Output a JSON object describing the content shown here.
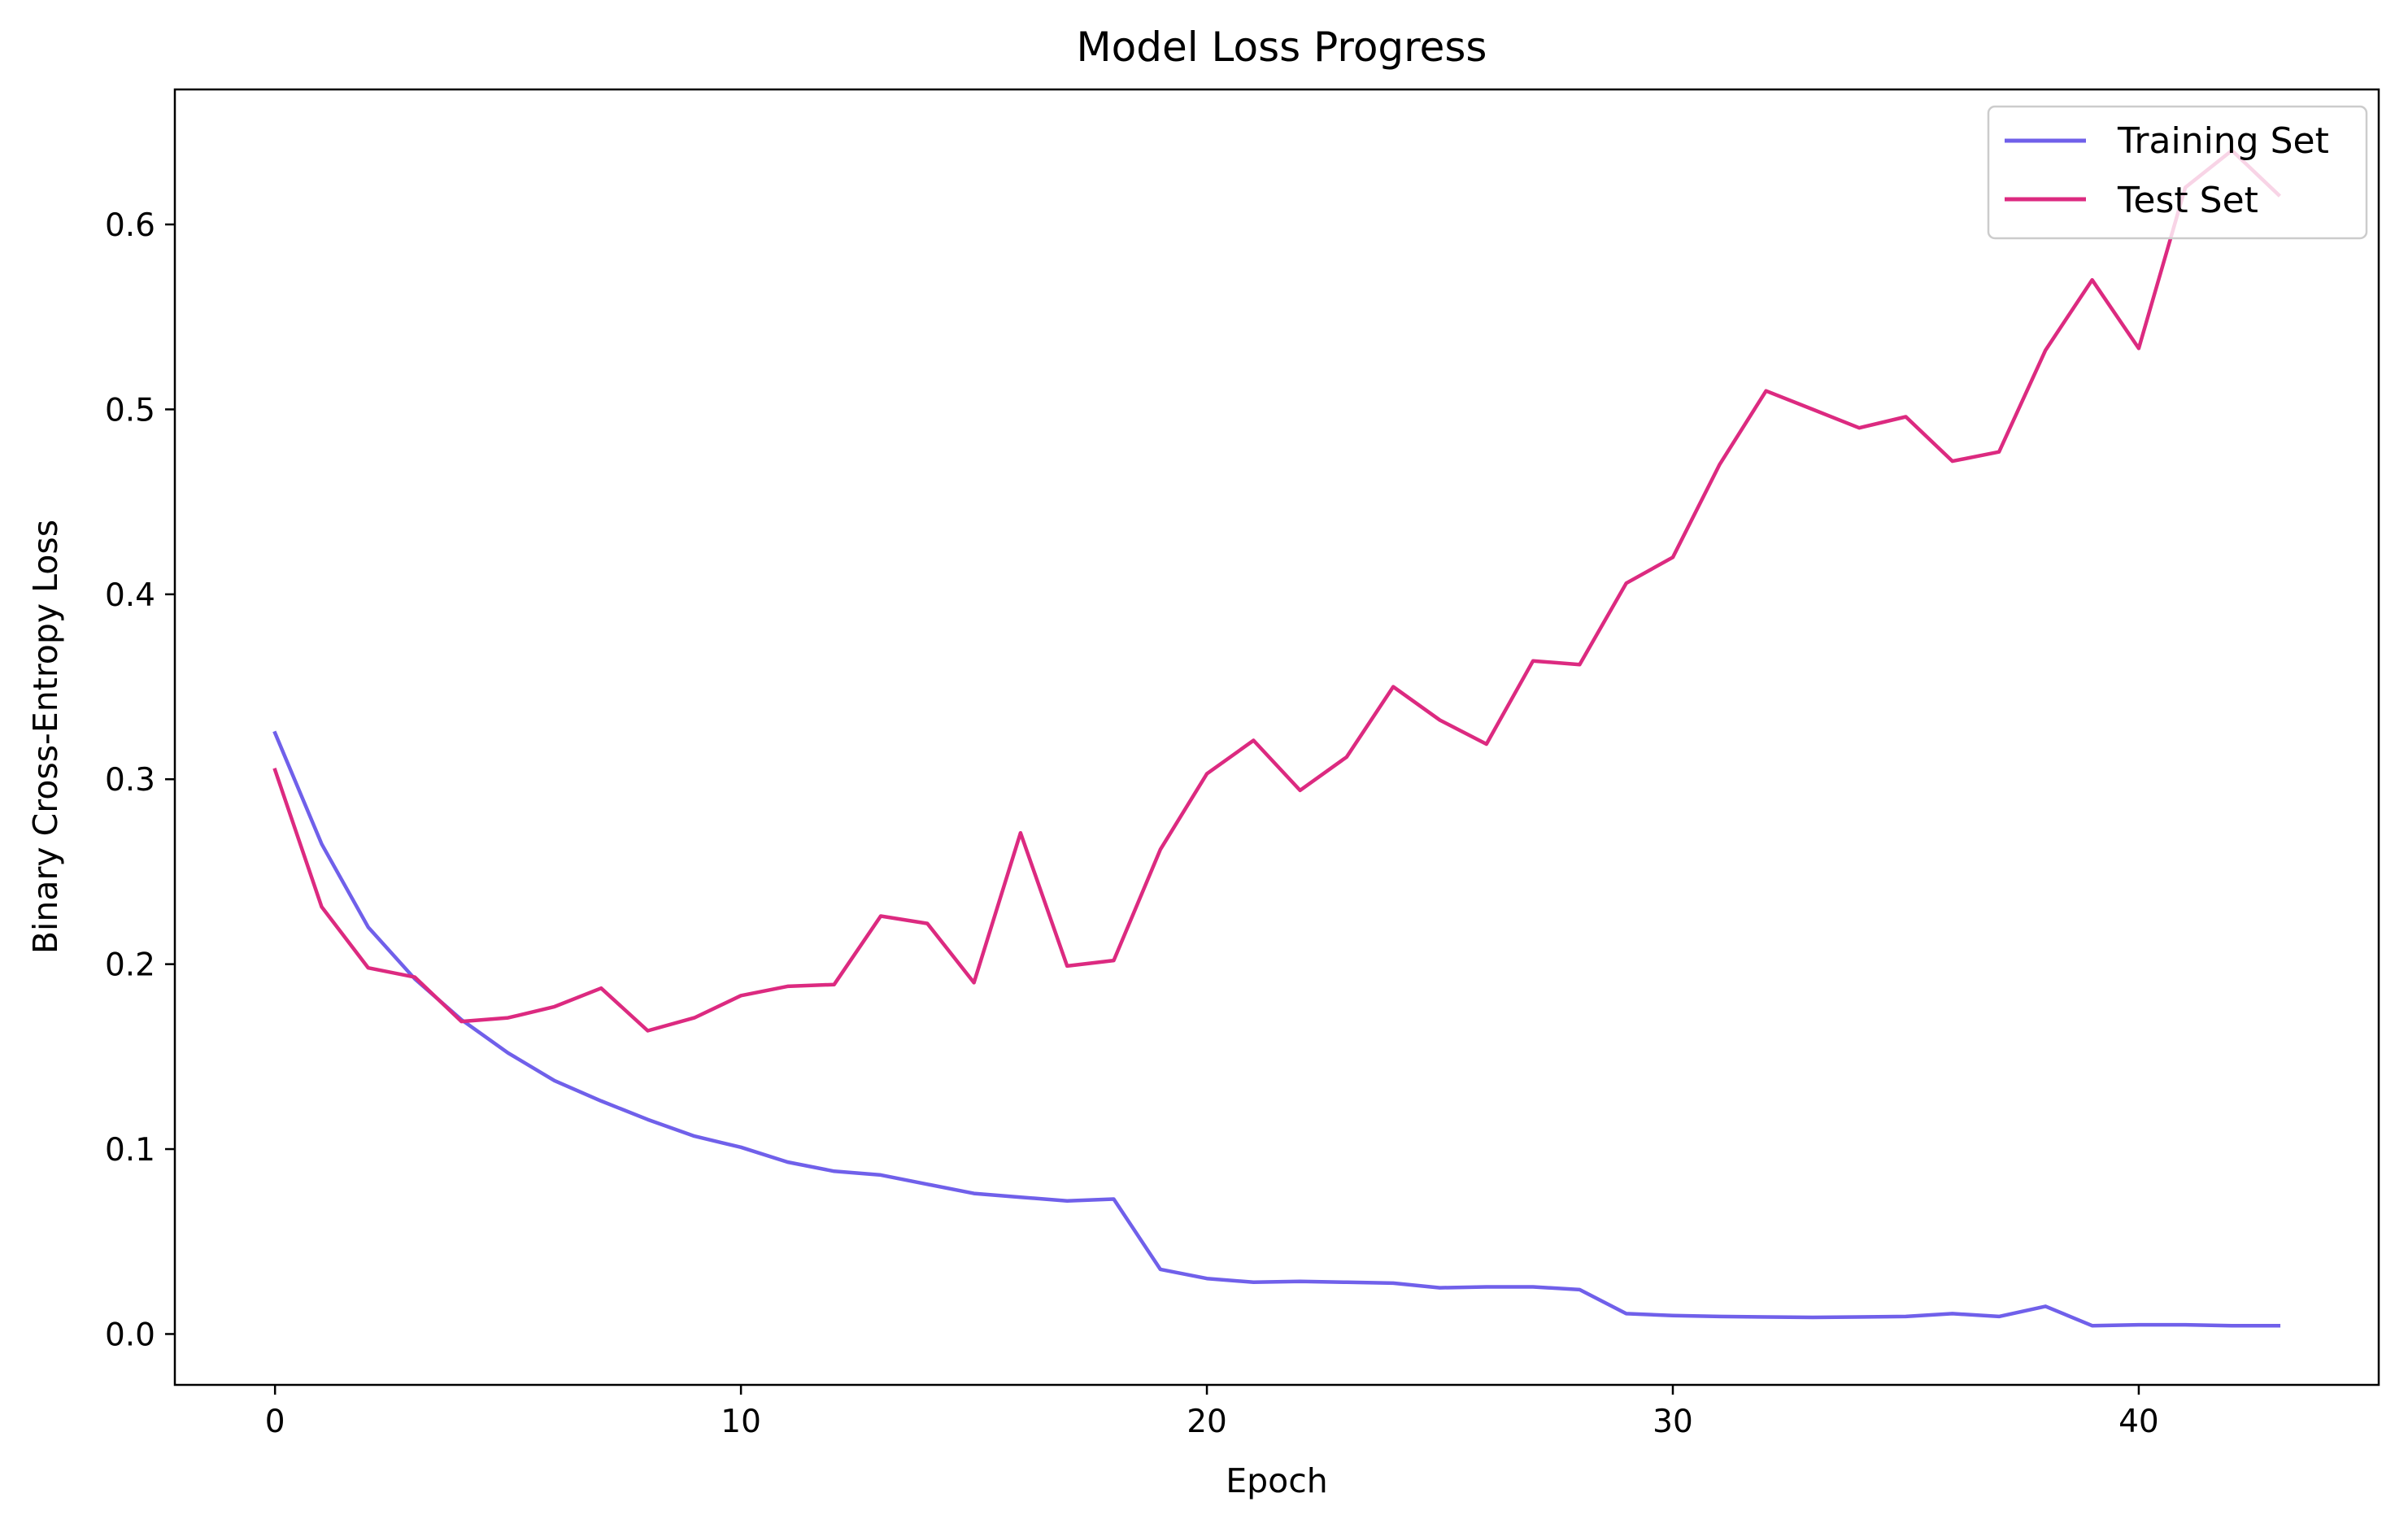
{
  "chart_data": {
    "type": "line",
    "title": "Model Loss Progress",
    "xlabel": "Epoch",
    "ylabel": "Binary Cross-Entropy Loss",
    "xlim": [
      -2.15,
      45.15
    ],
    "ylim": [
      -0.0275,
      0.673
    ],
    "xticks": [
      0,
      10,
      20,
      30,
      40
    ],
    "yticks": [
      0.0,
      0.1,
      0.2,
      0.3,
      0.4,
      0.5,
      0.6
    ],
    "ytick_labels": [
      "0.0",
      "0.1",
      "0.2",
      "0.3",
      "0.4",
      "0.5",
      "0.6"
    ],
    "grid": false,
    "legend_position": "top-right",
    "x": [
      0,
      1,
      2,
      3,
      4,
      5,
      6,
      7,
      8,
      9,
      10,
      11,
      12,
      13,
      14,
      15,
      16,
      17,
      18,
      19,
      20,
      21,
      22,
      23,
      24,
      25,
      26,
      27,
      28,
      29,
      30,
      31,
      32,
      33,
      34,
      35,
      36,
      37,
      38,
      39,
      40,
      41,
      42,
      43
    ],
    "series": [
      {
        "name": "Training Set",
        "color": "#7060ea",
        "values": [
          0.325,
          0.265,
          0.22,
          0.192,
          0.17,
          0.152,
          0.137,
          0.126,
          0.116,
          0.107,
          0.101,
          0.093,
          0.088,
          0.086,
          0.081,
          0.076,
          0.074,
          0.072,
          0.073,
          0.035,
          0.03,
          0.028,
          0.0285,
          0.028,
          0.0275,
          0.025,
          0.0255,
          0.0255,
          0.024,
          0.011,
          0.01,
          0.0095,
          0.0092,
          0.009,
          0.0092,
          0.0095,
          0.011,
          0.0095,
          0.015,
          0.0045,
          0.005,
          0.005,
          0.0045,
          0.0045
        ]
      },
      {
        "name": "Test Set",
        "color": "#dc2a80",
        "values": [
          0.305,
          0.231,
          0.198,
          0.193,
          0.169,
          0.171,
          0.177,
          0.187,
          0.164,
          0.171,
          0.183,
          0.188,
          0.189,
          0.226,
          0.222,
          0.19,
          0.271,
          0.199,
          0.202,
          0.262,
          0.303,
          0.321,
          0.294,
          0.312,
          0.35,
          0.332,
          0.319,
          0.364,
          0.362,
          0.406,
          0.42,
          0.47,
          0.51,
          0.5,
          0.49,
          0.496,
          0.472,
          0.477,
          0.532,
          0.57,
          0.533,
          0.62,
          0.64,
          0.616
        ]
      }
    ]
  }
}
